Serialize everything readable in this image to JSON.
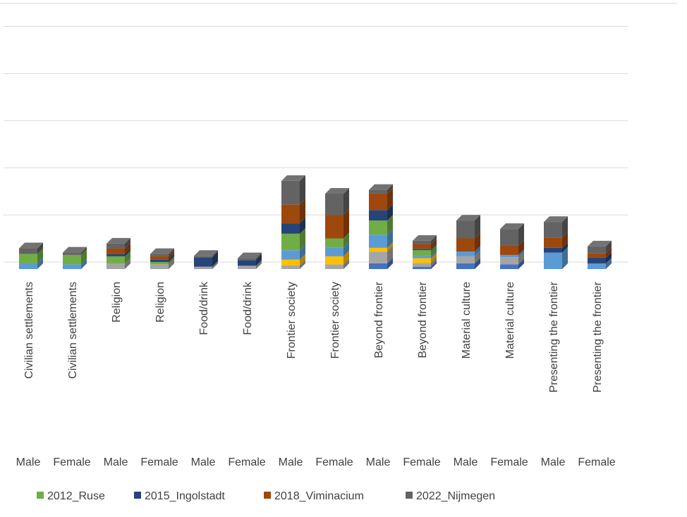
{
  "chart_data": {
    "type": "bar3d_stacked",
    "categories": [
      "Civilian settlements",
      "Civilian settlements",
      "Religion",
      "Religion",
      "Food/drink",
      "Food/drink",
      "Frontier society",
      "Frontier society",
      "Beyond frontier",
      "Beyond frontier",
      "Material culture",
      "Material culture",
      "Presenting the frontier",
      "Presenting the frontier"
    ],
    "subcategories": [
      "Male",
      "Female",
      "Male",
      "Female",
      "Male",
      "Female",
      "Male",
      "Female",
      "Male",
      "Female",
      "Male",
      "Female",
      "Male",
      "Female"
    ],
    "ylim": [
      0,
      5.5
    ],
    "ygrid": [
      0,
      1,
      2,
      3,
      4,
      5
    ],
    "series": [
      {
        "color": "#4472c4",
        "values": [
          0,
          0,
          0,
          0,
          0,
          0,
          0,
          0,
          0.12,
          0.05,
          0.12,
          0.1,
          0,
          0
        ]
      },
      {
        "color": "#a5a5a5",
        "values": [
          0,
          0,
          0.12,
          0.1,
          0.05,
          0.07,
          0.08,
          0.1,
          0.25,
          0.08,
          0.15,
          0.15,
          0,
          0
        ]
      },
      {
        "color": "#ffc000",
        "values": [
          0,
          0,
          0,
          0,
          0,
          0,
          0.12,
          0.17,
          0.08,
          0.1,
          0,
          0,
          0,
          0
        ]
      },
      {
        "color": "#5b9bd5",
        "values": [
          0.12,
          0.1,
          0,
          0,
          0,
          0,
          0.2,
          0.18,
          0.28,
          0.05,
          0.1,
          0.05,
          0.35,
          0.12
        ]
      },
      {
        "name": "2012_Ruse",
        "color": "#70ad47",
        "values": [
          0.2,
          0.2,
          0.15,
          0.05,
          0,
          0,
          0.35,
          0.2,
          0.3,
          0.12,
          0,
          0,
          0,
          0
        ]
      },
      {
        "name": "2015_Ingolstadt",
        "color": "#264478",
        "values": [
          0,
          0,
          0.05,
          0.05,
          0.2,
          0.12,
          0.22,
          0,
          0.22,
          0.03,
          0,
          0,
          0.1,
          0.12
        ]
      },
      {
        "name": "2018_Viminacium",
        "color": "#9e480e",
        "values": [
          0,
          0,
          0.12,
          0.07,
          0,
          0,
          0.4,
          0.5,
          0.35,
          0.1,
          0.28,
          0.2,
          0.22,
          0.1
        ]
      },
      {
        "name": "2022_Nijmegen",
        "color": "#636363",
        "values": [
          0.12,
          0.05,
          0.1,
          0.05,
          0.03,
          0.04,
          0.5,
          0.45,
          0.08,
          0.07,
          0.38,
          0.35,
          0.33,
          0.14
        ]
      }
    ]
  }
}
